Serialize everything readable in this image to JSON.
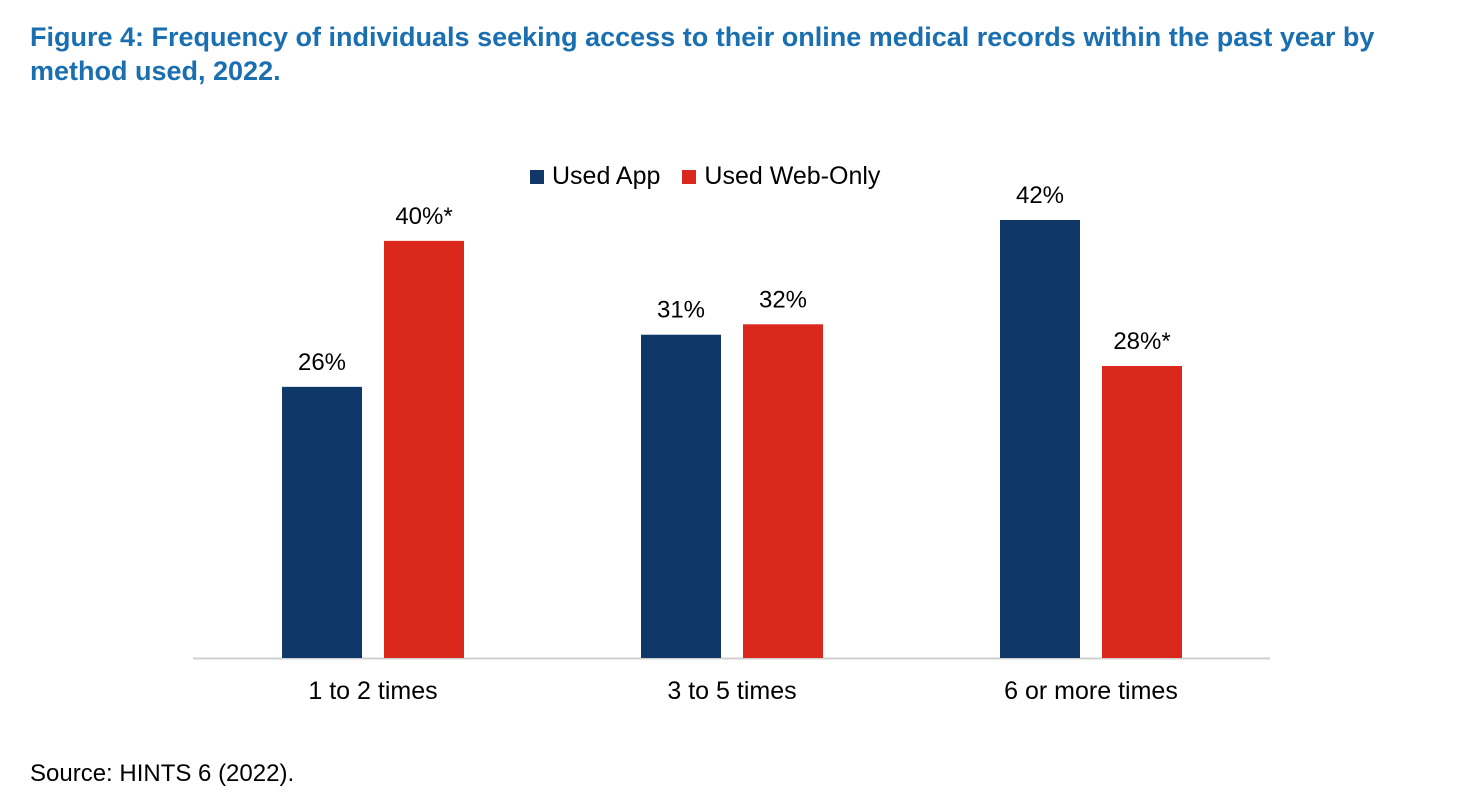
{
  "title": "Figure 4: Frequency of individuals seeking access to their online medical records within the past year by method used, 2022.",
  "source": "Source: HINTS 6 (2022).",
  "colors": {
    "app": "#0f3768",
    "web": "#da291c"
  },
  "chart_data": {
    "type": "bar",
    "title": "Figure 4: Frequency of individuals seeking access to their online medical records within the past year by method used, 2022.",
    "categories": [
      "1 to 2 times",
      "3 to 5 times",
      "6 or more times"
    ],
    "series": [
      {
        "name": "Used App",
        "values": [
          26,
          31,
          42
        ],
        "labels": [
          "26%",
          "31%",
          "42%"
        ]
      },
      {
        "name": "Used Web-Only",
        "values": [
          40,
          32,
          28
        ],
        "labels": [
          "40%*",
          "32%",
          "28%*"
        ]
      }
    ],
    "ylim": [
      0,
      42
    ],
    "legend": "top-center",
    "grid": false
  }
}
